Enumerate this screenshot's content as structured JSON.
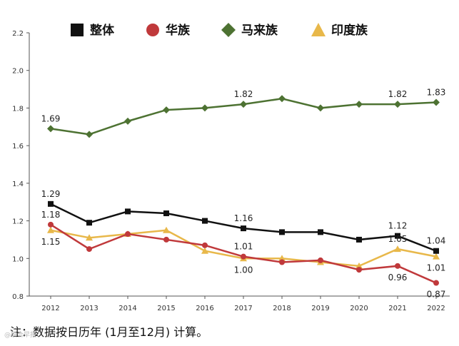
{
  "chart_data": {
    "type": "line",
    "categories": [
      "2012",
      "2013",
      "2014",
      "2015",
      "2016",
      "2017",
      "2018",
      "2019",
      "2020",
      "2021",
      "2022"
    ],
    "ylim": [
      0.8,
      2.2
    ],
    "yticks": [
      "0.8",
      "1.0",
      "1.2",
      "1.4",
      "1.6",
      "1.8",
      "2.0",
      "2.2"
    ],
    "series": [
      {
        "name": "整体",
        "color": "#111111",
        "marker": "square",
        "values": [
          1.29,
          1.19,
          1.25,
          1.24,
          1.2,
          1.16,
          1.14,
          1.14,
          1.1,
          1.12,
          1.04
        ],
        "labels": [
          {
            "i": 0,
            "text": "1.29",
            "pos": "above"
          },
          {
            "i": 5,
            "text": "1.16",
            "pos": "above"
          },
          {
            "i": 9,
            "text": "1.12",
            "pos": "above"
          },
          {
            "i": 10,
            "text": "1.04",
            "pos": "above"
          }
        ]
      },
      {
        "name": "华族",
        "color": "#c0393b",
        "marker": "circle",
        "values": [
          1.18,
          1.05,
          1.13,
          1.1,
          1.07,
          1.01,
          0.98,
          0.99,
          0.94,
          0.96,
          0.87
        ],
        "labels": [
          {
            "i": 0,
            "text": "1.18",
            "pos": "above"
          },
          {
            "i": 5,
            "text": "1.01",
            "pos": "above"
          },
          {
            "i": 9,
            "text": "0.96",
            "pos": "below"
          },
          {
            "i": 10,
            "text": "0.87",
            "pos": "below"
          }
        ]
      },
      {
        "name": "马来族",
        "color": "#4d7232",
        "marker": "diamond",
        "values": [
          1.69,
          1.66,
          1.73,
          1.79,
          1.8,
          1.82,
          1.85,
          1.8,
          1.82,
          1.82,
          1.83
        ],
        "labels": [
          {
            "i": 0,
            "text": "1.69",
            "pos": "above"
          },
          {
            "i": 5,
            "text": "1.82",
            "pos": "above"
          },
          {
            "i": 9,
            "text": "1.82",
            "pos": "above"
          },
          {
            "i": 10,
            "text": "1.83",
            "pos": "above"
          }
        ]
      },
      {
        "name": "印度族",
        "color": "#e8b84a",
        "marker": "triangle",
        "values": [
          1.15,
          1.11,
          1.13,
          1.15,
          1.04,
          1.0,
          1.0,
          0.98,
          0.96,
          1.05,
          1.01
        ],
        "labels": [
          {
            "i": 0,
            "text": "1.15",
            "pos": "below"
          },
          {
            "i": 5,
            "text": "1.00",
            "pos": "below"
          },
          {
            "i": 9,
            "text": "1.05",
            "pos": "above"
          },
          {
            "i": 10,
            "text": "1.01",
            "pos": "below"
          }
        ]
      }
    ]
  },
  "note": "注：数据按日历年 (1月至12月) 计算。",
  "watermark": "@联合早报"
}
